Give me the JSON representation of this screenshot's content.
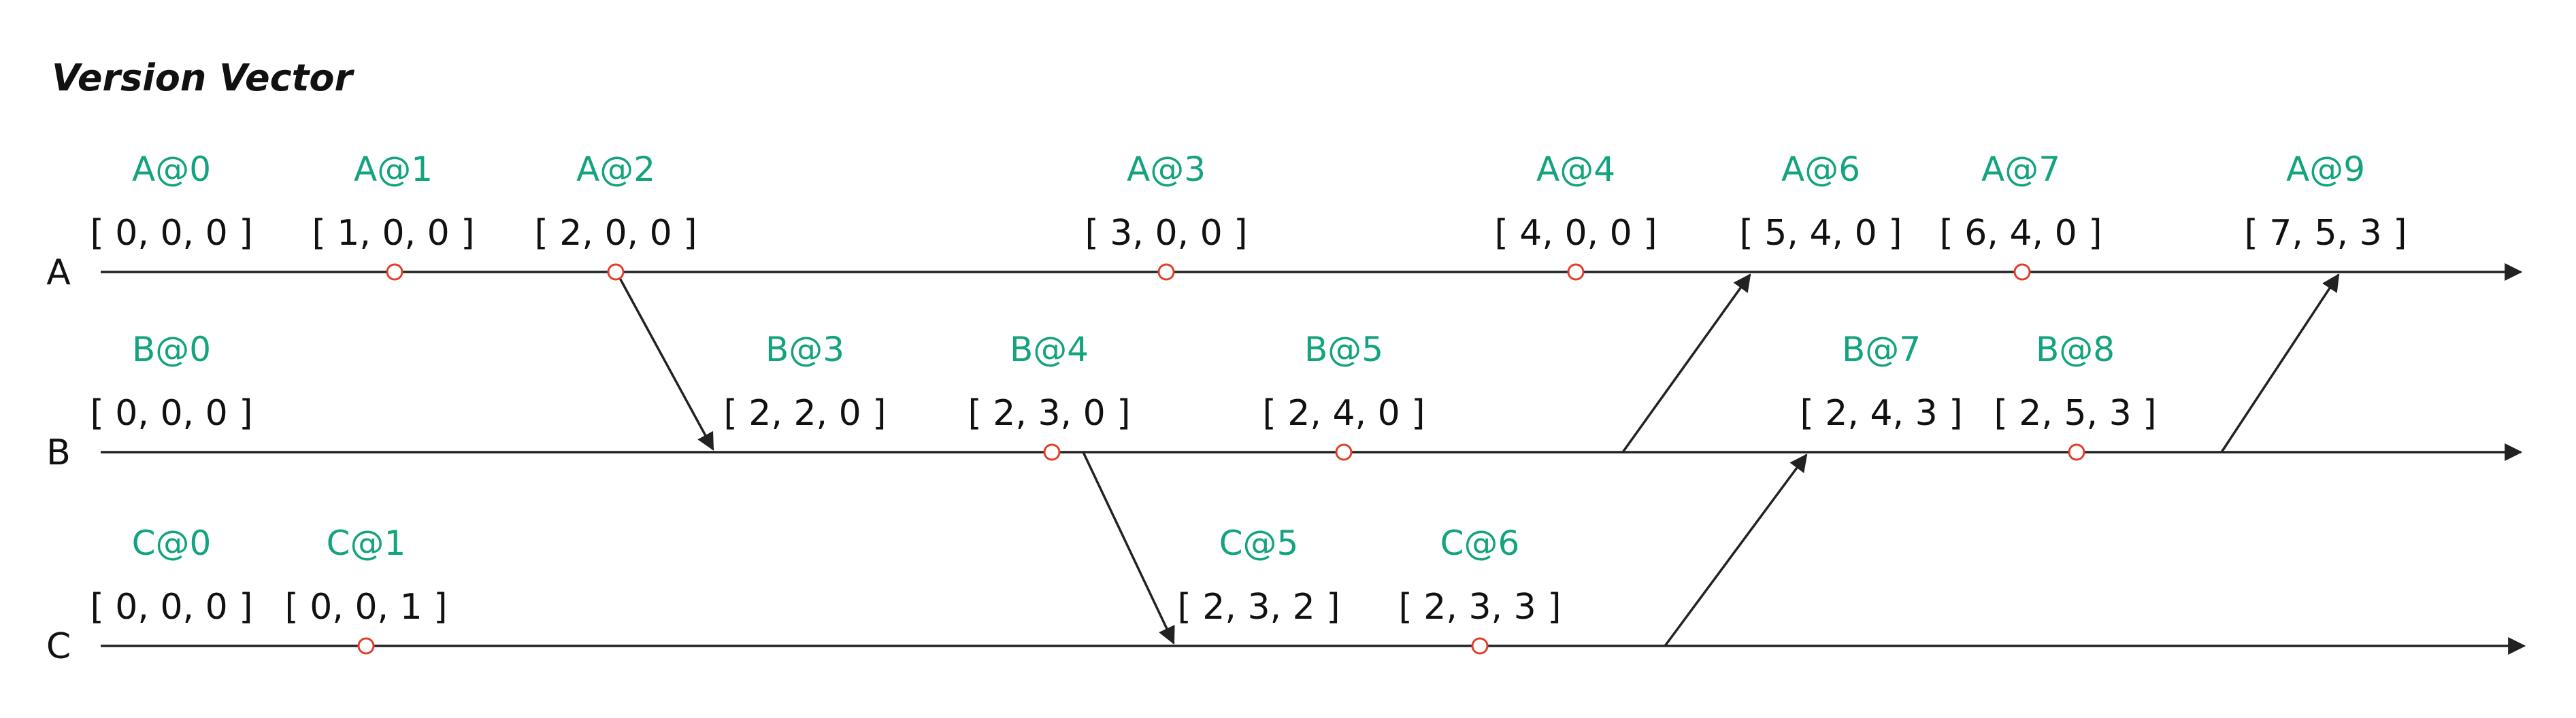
{
  "title": "Version Vector",
  "colors": {
    "event_label": "#14a37f",
    "event_marker": "#e0402a",
    "line": "#222222",
    "text": "#111111"
  },
  "processes": [
    {
      "name": "A",
      "events": [
        {
          "label": "A@0",
          "vector": "[ 0, 0, 0 ]",
          "marker": false
        },
        {
          "label": "A@1",
          "vector": "[ 1, 0, 0 ]",
          "marker": true
        },
        {
          "label": "A@2",
          "vector": "[ 2, 0, 0 ]",
          "marker": true
        },
        {
          "label": "A@3",
          "vector": "[ 3, 0, 0 ]",
          "marker": true
        },
        {
          "label": "A@4",
          "vector": "[ 4, 0, 0 ]",
          "marker": true
        },
        {
          "label": "A@6",
          "vector": "[ 5, 4, 0 ]",
          "marker": false
        },
        {
          "label": "A@7",
          "vector": "[ 6, 4, 0 ]",
          "marker": true
        },
        {
          "label": "A@9",
          "vector": "[ 7, 5, 3 ]",
          "marker": false
        }
      ]
    },
    {
      "name": "B",
      "events": [
        {
          "label": "B@0",
          "vector": "[ 0, 0, 0 ]",
          "marker": false
        },
        {
          "label": "B@3",
          "vector": "[ 2, 2, 0 ]",
          "marker": false
        },
        {
          "label": "B@4",
          "vector": "[ 2, 3, 0 ]",
          "marker": true
        },
        {
          "label": "B@5",
          "vector": "[ 2, 4, 0 ]",
          "marker": true
        },
        {
          "label": "B@7",
          "vector": "[ 2, 4, 3 ]",
          "marker": false
        },
        {
          "label": "B@8",
          "vector": "[ 2, 5, 3 ]",
          "marker": true
        }
      ]
    },
    {
      "name": "C",
      "events": [
        {
          "label": "C@0",
          "vector": "[ 0, 0, 0 ]",
          "marker": false
        },
        {
          "label": "C@1",
          "vector": "[ 0, 0, 1 ]",
          "marker": true
        },
        {
          "label": "C@5",
          "vector": "[ 2, 3, 2 ]",
          "marker": false
        },
        {
          "label": "C@6",
          "vector": "[ 2, 3, 3 ]",
          "marker": true
        }
      ]
    }
  ],
  "messages": [
    {
      "from": "A@2",
      "to": "B@3"
    },
    {
      "from": "B@4",
      "to": "C@5"
    },
    {
      "from": "B@5",
      "to": "A@6"
    },
    {
      "from": "C@6",
      "to": "B@7"
    },
    {
      "from": "B@8",
      "to": "A@9"
    }
  ]
}
